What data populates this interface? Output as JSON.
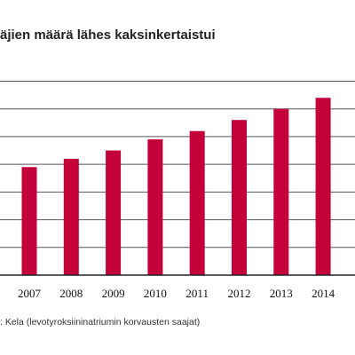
{
  "title": "äjien määrä lähes kaksinkertaistui",
  "source": ": Kela (levotyroksiininatriumin korvausten saajat)",
  "colors": {
    "bar": "#c4003a",
    "grid": "#555555",
    "axis": "#222222"
  },
  "chart_data": {
    "type": "bar",
    "title": "äjien määrä lähes kaksinkertaistui",
    "categories": [
      "2007",
      "2008",
      "2009",
      "2010",
      "2011",
      "2012",
      "2013",
      "2014"
    ],
    "values": [
      3.9,
      4.2,
      4.5,
      4.9,
      5.2,
      5.6,
      6.0,
      6.4
    ],
    "xlabel": "",
    "ylabel": "",
    "ylim": [
      0,
      7
    ],
    "grid": true,
    "legend": "none",
    "source": ": Kela (levotyroksiininatriumin korvausten saajat)"
  }
}
